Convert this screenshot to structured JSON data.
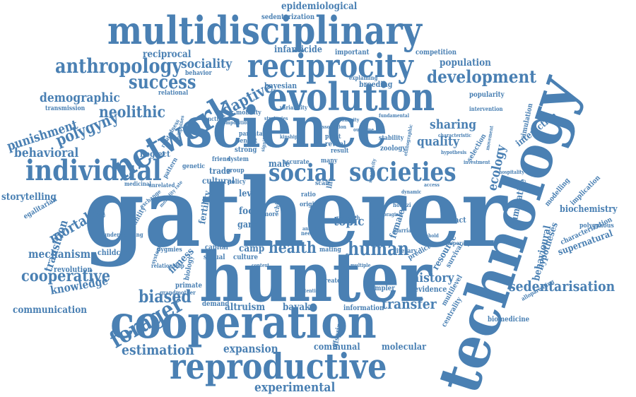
{
  "colors": {
    "word": "#4a80b3",
    "background": "#ffffff"
  },
  "words": [
    {
      "text": "gatherer",
      "weight": 1.0
    },
    {
      "text": "hunter",
      "weight": 0.82
    },
    {
      "text": "technology",
      "weight": 0.8
    },
    {
      "text": "science",
      "weight": 0.78
    },
    {
      "text": "cooperation",
      "weight": 0.66
    },
    {
      "text": "multidisciplinary",
      "weight": 0.6
    },
    {
      "text": "evolution",
      "weight": 0.58
    },
    {
      "text": "reproductive",
      "weight": 0.55
    },
    {
      "text": "reciprocity",
      "weight": 0.5
    },
    {
      "text": "network",
      "weight": 0.48
    },
    {
      "text": "individual",
      "weight": 0.42
    },
    {
      "text": "social",
      "weight": 0.4
    },
    {
      "text": "societies",
      "weight": 0.4
    },
    {
      "text": "anthropology",
      "weight": 0.32
    },
    {
      "text": "forager",
      "weight": 0.32
    },
    {
      "text": "development",
      "weight": 0.3
    },
    {
      "text": "human",
      "weight": 0.3
    },
    {
      "text": "success",
      "weight": 0.3
    },
    {
      "text": "cooperative",
      "weight": 0.28
    },
    {
      "text": "biased",
      "weight": 0.28
    },
    {
      "text": "sedentarisation",
      "weight": 0.26
    },
    {
      "text": "transfer",
      "weight": 0.26
    },
    {
      "text": "health",
      "weight": 0.26
    },
    {
      "text": "estimation",
      "weight": 0.24
    },
    {
      "text": "experimental",
      "weight": 0.24
    },
    {
      "text": "punishment",
      "weight": 0.24
    },
    {
      "text": "neolithic",
      "weight": 0.24
    },
    {
      "text": "polygyny",
      "weight": 0.24
    },
    {
      "text": "mortality",
      "weight": 0.22
    },
    {
      "text": "adaptive",
      "weight": 0.22
    },
    {
      "text": "sociality",
      "weight": 0.22
    },
    {
      "text": "demographic",
      "weight": 0.22
    },
    {
      "text": "behavioral",
      "weight": 0.22
    },
    {
      "text": "sharing",
      "weight": 0.22
    },
    {
      "text": "quality",
      "weight": 0.22
    },
    {
      "text": "ecology",
      "weight": 0.22
    },
    {
      "text": "topic",
      "weight": 0.22
    },
    {
      "text": "history",
      "weight": 0.22
    },
    {
      "text": "mechanism",
      "weight": 0.2
    },
    {
      "text": "transition",
      "weight": 0.2
    },
    {
      "text": "knowledge",
      "weight": 0.2
    },
    {
      "text": "expansion",
      "weight": 0.2
    },
    {
      "text": "communication",
      "weight": 0.18
    },
    {
      "text": "storytelling",
      "weight": 0.18
    },
    {
      "text": "reciprocal",
      "weight": 0.18
    },
    {
      "text": "infanticide",
      "weight": 0.18
    },
    {
      "text": "population",
      "weight": 0.18
    },
    {
      "text": "epidemiological",
      "weight": 0.18
    },
    {
      "text": "fitness",
      "weight": 0.18
    },
    {
      "text": "altruism",
      "weight": 0.18
    },
    {
      "text": "bayaka",
      "weight": 0.18
    },
    {
      "text": "camp",
      "weight": 0.18
    },
    {
      "text": "male",
      "weight": 0.18
    },
    {
      "text": "female",
      "weight": 0.16
    },
    {
      "text": "resource",
      "weight": 0.16
    },
    {
      "text": "cumulative",
      "weight": 0.16
    },
    {
      "text": "behavioural",
      "weight": 0.16
    },
    {
      "text": "communal",
      "weight": 0.16
    },
    {
      "text": "molecular",
      "weight": 0.16
    },
    {
      "text": "biochemistry",
      "weight": 0.16
    },
    {
      "text": "supernatural",
      "weight": 0.16
    },
    {
      "text": "hypotheses",
      "weight": 0.16
    },
    {
      "text": "interaction",
      "weight": 0.16
    },
    {
      "text": "fertility",
      "weight": 0.16
    },
    {
      "text": "wealth",
      "weight": 0.16
    },
    {
      "text": "food",
      "weight": 0.16
    },
    {
      "text": "level",
      "weight": 0.16
    },
    {
      "text": "game",
      "weight": 0.16
    },
    {
      "text": "childcare",
      "weight": 0.14
    },
    {
      "text": "revolution",
      "weight": 0.14
    },
    {
      "text": "evidence",
      "weight": 0.14
    },
    {
      "text": "contact",
      "weight": 0.14
    },
    {
      "text": "trade",
      "weight": 0.14
    },
    {
      "text": "cultural",
      "weight": 0.14
    },
    {
      "text": "neglect",
      "weight": 0.14
    },
    {
      "text": "bayesian",
      "weight": 0.14
    },
    {
      "text": "breeding",
      "weight": 0.14
    },
    {
      "text": "competition",
      "weight": 0.14
    },
    {
      "text": "important",
      "weight": 0.14
    },
    {
      "text": "popularity",
      "weight": 0.13
    },
    {
      "text": "selection",
      "weight": 0.13
    },
    {
      "text": "demand",
      "weight": 0.13
    },
    {
      "text": "information",
      "weight": 0.13
    },
    {
      "text": "sampler",
      "weight": 0.13
    },
    {
      "text": "biomedicine",
      "weight": 0.13
    },
    {
      "text": "sexual",
      "weight": 0.13
    },
    {
      "text": "culture",
      "weight": 0.13
    },
    {
      "text": "capital",
      "weight": 0.13
    },
    {
      "text": "primate",
      "weight": 0.13
    },
    {
      "text": "biology",
      "weight": 0.13
    },
    {
      "text": "egalitarian",
      "weight": 0.13
    },
    {
      "text": "quantity",
      "weight": 0.13
    },
    {
      "text": "survival",
      "weight": 0.13
    },
    {
      "text": "multilevel",
      "weight": 0.12
    },
    {
      "text": "centrality",
      "weight": 0.12
    },
    {
      "text": "simulation",
      "weight": 0.12
    },
    {
      "text": "modelling",
      "weight": 0.12
    },
    {
      "text": "implication",
      "weight": 0.12
    },
    {
      "text": "characterization",
      "weight": 0.12
    },
    {
      "text": "polygynous",
      "weight": 0.11
    },
    {
      "text": "offspring",
      "weight": 0.11
    },
    {
      "text": "structure",
      "weight": 0.11
    },
    {
      "text": "predict",
      "weight": 0.11
    },
    {
      "text": "sedentarization",
      "weight": 0.11
    },
    {
      "text": "transmission",
      "weight": 0.11
    },
    {
      "text": "relational",
      "weight": 0.11
    },
    {
      "text": "behavior",
      "weight": 0.11
    },
    {
      "text": "genetic",
      "weight": 0.11
    },
    {
      "text": "friend",
      "weight": 0.11
    },
    {
      "text": "group",
      "weight": 0.11
    },
    {
      "text": "policy",
      "weight": 0.11
    },
    {
      "text": "system",
      "weight": 0.11
    },
    {
      "text": "reveal",
      "weight": 0.11
    },
    {
      "text": "strong",
      "weight": 0.11
    },
    {
      "text": "benefit",
      "weight": 0.11
    },
    {
      "text": "parental",
      "weight": 0.11
    },
    {
      "text": "zoology",
      "weight": 0.11
    },
    {
      "text": "stability",
      "weight": 0.11
    },
    {
      "text": "mobility",
      "weight": 0.11
    },
    {
      "text": "many",
      "weight": 0.11
    },
    {
      "text": "ratio",
      "weight": 0.11
    },
    {
      "text": "life",
      "weight": 0.11
    },
    {
      "text": "more",
      "weight": 0.11
    },
    {
      "text": "child",
      "weight": 0.11
    },
    {
      "text": "scale",
      "weight": 0.11
    },
    {
      "text": "origin",
      "weight": 0.11
    },
    {
      "text": "accurate",
      "weight": 0.11
    },
    {
      "text": "result",
      "weight": 0.11
    },
    {
      "text": "plant",
      "weight": 0.11
    },
    {
      "text": "mating",
      "weight": 0.11
    },
    {
      "text": "literary",
      "weight": 0.11
    },
    {
      "text": "greater",
      "weight": 0.11
    },
    {
      "text": "pygmies",
      "weight": 0.11
    },
    {
      "text": "pattern",
      "weight": 0.11
    },
    {
      "text": "functional",
      "weight": 0.1
    },
    {
      "text": "variability",
      "weight": 0.1
    },
    {
      "text": "explaining",
      "weight": 0.1
    },
    {
      "text": "marriage",
      "weight": 0.1
    },
    {
      "text": "contemporary",
      "weight": 0.1
    },
    {
      "text": "systematic",
      "weight": 0.1
    },
    {
      "text": "relationship",
      "weight": 0.1
    },
    {
      "text": "grandmother",
      "weight": 0.1
    },
    {
      "text": "understanding",
      "weight": 0.1
    },
    {
      "text": "alloparenting",
      "weight": 0.1
    },
    {
      "text": "intervention",
      "weight": 0.1
    },
    {
      "text": "hoanzi",
      "weight": 0.1
    },
    {
      "text": "research",
      "weight": 0.1
    },
    {
      "text": "need",
      "weight": 0.1
    },
    {
      "text": "medicinal",
      "weight": 0.1
    },
    {
      "text": "unrelated",
      "weight": 0.1
    },
    {
      "text": "relatedness",
      "weight": 0.1
    },
    {
      "text": "philippines",
      "weight": 0.1
    },
    {
      "text": "exchange",
      "weight": 0.1
    },
    {
      "text": "mortality rate",
      "weight": 0.1
    },
    {
      "text": "investment",
      "weight": 0.1
    },
    {
      "text": "movement",
      "weight": 0.1
    },
    {
      "text": "characteristic",
      "weight": 0.1
    },
    {
      "text": "hypothesis",
      "weight": 0.1
    },
    {
      "text": "hospitality",
      "weight": 0.1
    },
    {
      "text": "fundamental",
      "weight": 0.1
    },
    {
      "text": "proximity",
      "weight": 0.1
    },
    {
      "text": "strategies",
      "weight": 0.1
    },
    {
      "text": "significance",
      "weight": 0.1
    },
    {
      "text": "association",
      "weight": 0.1
    },
    {
      "text": "composition",
      "weight": 0.1
    },
    {
      "text": "dynamic",
      "weight": 0.1
    },
    {
      "text": "ethnographic",
      "weight": 0.1
    },
    {
      "text": "analysis",
      "weight": 0.1
    },
    {
      "text": "support",
      "weight": 0.1
    },
    {
      "text": "multiple",
      "weight": 0.1
    },
    {
      "text": "foraging",
      "weight": 0.1
    },
    {
      "text": "access",
      "weight": 0.1
    },
    {
      "text": "household",
      "weight": 0.1
    },
    {
      "text": "context",
      "weight": 0.1
    },
    {
      "text": "attention",
      "weight": 0.1
    },
    {
      "text": "kinship",
      "weight": 0.1
    },
    {
      "text": "outcome",
      "weight": 0.1
    },
    {
      "text": "sensitivity",
      "weight": 0.1
    },
    {
      "text": "hunting",
      "weight": 0.1
    }
  ]
}
